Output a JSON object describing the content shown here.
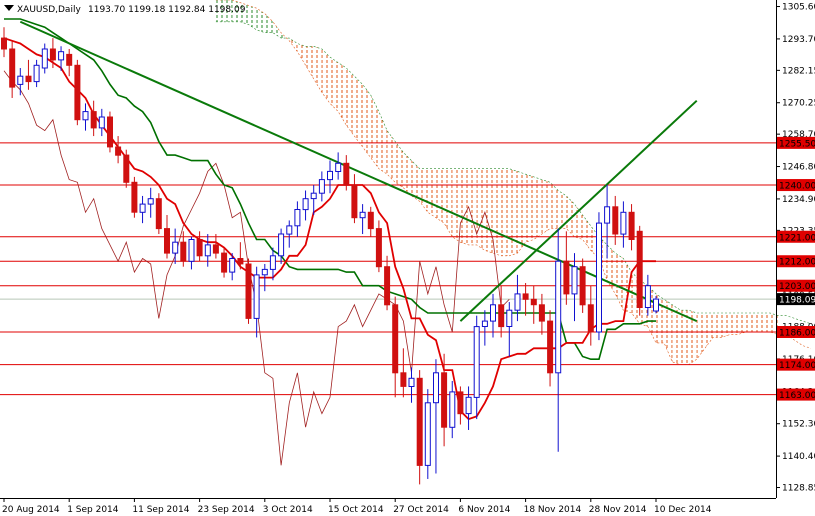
{
  "chart_data": {
    "type": "candlestick",
    "title": "XAUUSD,Daily",
    "ohlc_header": "1193.70 1199.18 1192.84 1198.09",
    "current_price": "1198.09",
    "ylim": [
      1125,
      1308
    ],
    "y_ticks": [
      {
        "value": 1305.6,
        "label": "1305.60"
      },
      {
        "value": 1293.7,
        "label": "1293.70"
      },
      {
        "value": 1282.15,
        "label": "1282.15"
      },
      {
        "value": 1270.25,
        "label": "1270.25"
      },
      {
        "value": 1258.7,
        "label": "1258.70"
      },
      {
        "value": 1246.8,
        "label": "1246.80"
      },
      {
        "value": 1234.9,
        "label": "1234.90"
      },
      {
        "value": 1223.35,
        "label": "1223.35"
      },
      {
        "value": 1211.45,
        "label": "1211.45"
      },
      {
        "value": 1199.55,
        "label": "1199.55"
      },
      {
        "value": 1188.0,
        "label": "1188.00"
      },
      {
        "value": 1176.1,
        "label": "1176.10"
      },
      {
        "value": 1164.2,
        "label": "1164.20"
      },
      {
        "value": 1152.3,
        "label": "1152.30"
      },
      {
        "value": 1140.4,
        "label": "1140.40"
      },
      {
        "value": 1128.85,
        "label": "1128.85"
      }
    ],
    "x_ticks": [
      {
        "index": 0,
        "label": "20 Aug 2014"
      },
      {
        "index": 8,
        "label": "1 Sep 2014"
      },
      {
        "index": 16,
        "label": "11 Sep 2014"
      },
      {
        "index": 24,
        "label": "23 Sep 2014"
      },
      {
        "index": 32,
        "label": "3 Oct 2014"
      },
      {
        "index": 40,
        "label": "15 Oct 2014"
      },
      {
        "index": 48,
        "label": "27 Oct 2014"
      },
      {
        "index": 56,
        "label": "6 Nov 2014"
      },
      {
        "index": 64,
        "label": "18 Nov 2014"
      },
      {
        "index": 72,
        "label": "28 Nov 2014"
      },
      {
        "index": 80,
        "label": "10 Dec 2014"
      }
    ],
    "levels": [
      {
        "value": 1255.5,
        "label": "1255.50"
      },
      {
        "value": 1240.0,
        "label": "1240.00"
      },
      {
        "value": 1221.0,
        "label": "1221.00"
      },
      {
        "value": 1212.0,
        "label": "1212.00"
      },
      {
        "value": 1203.0,
        "label": "1203.00"
      },
      {
        "value": 1186.0,
        "label": "1186.00"
      },
      {
        "value": 1174.0,
        "label": "1174.00"
      },
      {
        "value": 1163.0,
        "label": "1163.00"
      }
    ],
    "candles": [
      {
        "o": 1294,
        "h": 1298,
        "l": 1287,
        "c": 1290
      },
      {
        "o": 1290,
        "h": 1293,
        "l": 1272,
        "c": 1276
      },
      {
        "o": 1277,
        "h": 1283,
        "l": 1273,
        "c": 1280
      },
      {
        "o": 1280,
        "h": 1286,
        "l": 1275,
        "c": 1278
      },
      {
        "o": 1278,
        "h": 1286,
        "l": 1276,
        "c": 1284
      },
      {
        "o": 1283,
        "h": 1292,
        "l": 1281,
        "c": 1290
      },
      {
        "o": 1290,
        "h": 1294,
        "l": 1283,
        "c": 1286
      },
      {
        "o": 1286,
        "h": 1291,
        "l": 1282,
        "c": 1289
      },
      {
        "o": 1288,
        "h": 1290,
        "l": 1280,
        "c": 1284
      },
      {
        "o": 1284,
        "h": 1286,
        "l": 1262,
        "c": 1264
      },
      {
        "o": 1264,
        "h": 1270,
        "l": 1260,
        "c": 1267
      },
      {
        "o": 1267,
        "h": 1271,
        "l": 1258,
        "c": 1261
      },
      {
        "o": 1261,
        "h": 1268,
        "l": 1258,
        "c": 1265
      },
      {
        "o": 1265,
        "h": 1267,
        "l": 1252,
        "c": 1254
      },
      {
        "o": 1254,
        "h": 1258,
        "l": 1248,
        "c": 1251
      },
      {
        "o": 1251,
        "h": 1253,
        "l": 1239,
        "c": 1241
      },
      {
        "o": 1241,
        "h": 1243,
        "l": 1228,
        "c": 1230
      },
      {
        "o": 1230,
        "h": 1236,
        "l": 1226,
        "c": 1233
      },
      {
        "o": 1233,
        "h": 1239,
        "l": 1228,
        "c": 1235
      },
      {
        "o": 1235,
        "h": 1237,
        "l": 1222,
        "c": 1224
      },
      {
        "o": 1224,
        "h": 1229,
        "l": 1213,
        "c": 1215
      },
      {
        "o": 1215,
        "h": 1224,
        "l": 1211,
        "c": 1219
      },
      {
        "o": 1219,
        "h": 1223,
        "l": 1210,
        "c": 1212
      },
      {
        "o": 1212,
        "h": 1221,
        "l": 1209,
        "c": 1220
      },
      {
        "o": 1220,
        "h": 1223,
        "l": 1212,
        "c": 1214
      },
      {
        "o": 1214,
        "h": 1222,
        "l": 1210,
        "c": 1218
      },
      {
        "o": 1218,
        "h": 1222,
        "l": 1213,
        "c": 1215
      },
      {
        "o": 1215,
        "h": 1217,
        "l": 1206,
        "c": 1208
      },
      {
        "o": 1208,
        "h": 1215,
        "l": 1205,
        "c": 1213
      },
      {
        "o": 1213,
        "h": 1219,
        "l": 1209,
        "c": 1211
      },
      {
        "o": 1211,
        "h": 1213,
        "l": 1189,
        "c": 1191
      },
      {
        "o": 1191,
        "h": 1210,
        "l": 1184,
        "c": 1207
      },
      {
        "o": 1207,
        "h": 1211,
        "l": 1201,
        "c": 1209
      },
      {
        "o": 1209,
        "h": 1217,
        "l": 1205,
        "c": 1214
      },
      {
        "o": 1214,
        "h": 1224,
        "l": 1211,
        "c": 1222
      },
      {
        "o": 1222,
        "h": 1227,
        "l": 1217,
        "c": 1225
      },
      {
        "o": 1225,
        "h": 1234,
        "l": 1221,
        "c": 1231
      },
      {
        "o": 1231,
        "h": 1238,
        "l": 1227,
        "c": 1235
      },
      {
        "o": 1235,
        "h": 1240,
        "l": 1229,
        "c": 1237
      },
      {
        "o": 1237,
        "h": 1245,
        "l": 1234,
        "c": 1242
      },
      {
        "o": 1242,
        "h": 1249,
        "l": 1237,
        "c": 1245
      },
      {
        "o": 1245,
        "h": 1252,
        "l": 1242,
        "c": 1248
      },
      {
        "o": 1248,
        "h": 1251,
        "l": 1238,
        "c": 1240
      },
      {
        "o": 1240,
        "h": 1244,
        "l": 1226,
        "c": 1228
      },
      {
        "o": 1228,
        "h": 1233,
        "l": 1222,
        "c": 1230
      },
      {
        "o": 1230,
        "h": 1232,
        "l": 1221,
        "c": 1224
      },
      {
        "o": 1224,
        "h": 1227,
        "l": 1208,
        "c": 1210
      },
      {
        "o": 1210,
        "h": 1214,
        "l": 1194,
        "c": 1196
      },
      {
        "o": 1196,
        "h": 1199,
        "l": 1162,
        "c": 1171
      },
      {
        "o": 1171,
        "h": 1180,
        "l": 1162,
        "c": 1166
      },
      {
        "o": 1166,
        "h": 1173,
        "l": 1160,
        "c": 1169
      },
      {
        "o": 1169,
        "h": 1172,
        "l": 1130,
        "c": 1137
      },
      {
        "o": 1137,
        "h": 1165,
        "l": 1132,
        "c": 1160
      },
      {
        "o": 1160,
        "h": 1176,
        "l": 1134,
        "c": 1171
      },
      {
        "o": 1171,
        "h": 1178,
        "l": 1144,
        "c": 1151
      },
      {
        "o": 1151,
        "h": 1168,
        "l": 1147,
        "c": 1164
      },
      {
        "o": 1164,
        "h": 1166,
        "l": 1152,
        "c": 1156
      },
      {
        "o": 1156,
        "h": 1166,
        "l": 1150,
        "c": 1162
      },
      {
        "o": 1162,
        "h": 1192,
        "l": 1154,
        "c": 1188
      },
      {
        "o": 1188,
        "h": 1194,
        "l": 1181,
        "c": 1190
      },
      {
        "o": 1190,
        "h": 1200,
        "l": 1184,
        "c": 1196
      },
      {
        "o": 1196,
        "h": 1203,
        "l": 1184,
        "c": 1188
      },
      {
        "o": 1188,
        "h": 1197,
        "l": 1177,
        "c": 1194
      },
      {
        "o": 1194,
        "h": 1207,
        "l": 1190,
        "c": 1200
      },
      {
        "o": 1200,
        "h": 1204,
        "l": 1192,
        "c": 1198
      },
      {
        "o": 1198,
        "h": 1203,
        "l": 1189,
        "c": 1196
      },
      {
        "o": 1196,
        "h": 1200,
        "l": 1185,
        "c": 1190
      },
      {
        "o": 1190,
        "h": 1194,
        "l": 1166,
        "c": 1171
      },
      {
        "o": 1171,
        "h": 1224,
        "l": 1142,
        "c": 1212
      },
      {
        "o": 1212,
        "h": 1223,
        "l": 1196,
        "c": 1200
      },
      {
        "o": 1200,
        "h": 1215,
        "l": 1190,
        "c": 1210
      },
      {
        "o": 1210,
        "h": 1213,
        "l": 1193,
        "c": 1196
      },
      {
        "o": 1196,
        "h": 1203,
        "l": 1181,
        "c": 1186
      },
      {
        "o": 1186,
        "h": 1230,
        "l": 1183,
        "c": 1226
      },
      {
        "o": 1226,
        "h": 1240,
        "l": 1213,
        "c": 1232
      },
      {
        "o": 1232,
        "h": 1236,
        "l": 1218,
        "c": 1222
      },
      {
        "o": 1222,
        "h": 1234,
        "l": 1217,
        "c": 1230
      },
      {
        "o": 1230,
        "h": 1233,
        "l": 1216,
        "c": 1220
      },
      {
        "o": 1223,
        "h": 1225,
        "l": 1192,
        "c": 1195
      },
      {
        "o": 1195,
        "h": 1207,
        "l": 1192,
        "c": 1203
      },
      {
        "o": 1193.7,
        "h": 1199.18,
        "l": 1192.84,
        "c": 1198.09
      }
    ],
    "kijun_red": [
      1294,
      1293,
      1292,
      1290,
      1288,
      1287,
      1285,
      1283,
      1278,
      1275,
      1272,
      1266,
      1262,
      1258,
      1254,
      1250,
      1246,
      1245,
      1243,
      1240,
      1235,
      1233,
      1226,
      1222,
      1220,
      1219,
      1219,
      1217,
      1214,
      1210,
      1208,
      1206,
      1206,
      1206,
      1209,
      1214,
      1214,
      1218,
      1230,
      1232,
      1235,
      1240,
      1240,
      1240,
      1240,
      1237,
      1230,
      1226,
      1210,
      1202,
      1191,
      1191,
      1185,
      1183,
      1172,
      1172,
      1157,
      1154,
      1155,
      1160,
      1166,
      1176,
      1177,
      1178,
      1178,
      1180,
      1180,
      1180,
      1180,
      1182,
      1182,
      1182,
      1187,
      1189,
      1189,
      1190,
      1190,
      1208,
      1212,
      1212,
      1212
    ],
    "tenkan_green": [
      1301,
      1301,
      1301,
      1300,
      1299,
      1298,
      1296,
      1294,
      1292,
      1290,
      1288,
      1286,
      1282,
      1277,
      1273,
      1272,
      1269,
      1267,
      1263,
      1256,
      1251,
      1251,
      1250,
      1249,
      1249,
      1249,
      1244,
      1240,
      1239,
      1233,
      1226,
      1220,
      1220,
      1216,
      1214,
      1210,
      1209,
      1209,
      1209,
      1209,
      1209,
      1209,
      1208,
      1208,
      1203,
      1203,
      1203,
      1201,
      1200,
      1199,
      1198,
      1195,
      1193,
      1193,
      1193,
      1193,
      1193,
      1193,
      1193,
      1193,
      1193,
      1193,
      1193,
      1193,
      1193,
      1193,
      1193,
      1193,
      1193,
      1182,
      1182,
      1177,
      1176,
      1176,
      1187,
      1187,
      1189,
      1189,
      1189,
      1190,
      1190
    ],
    "chikou": [
      1282,
      1278,
      1275,
      1270,
      1262,
      1260,
      1264,
      1251,
      1242,
      1241,
      1230,
      1235,
      1224,
      1218,
      1212,
      1219,
      1208,
      1213,
      1211,
      1191,
      1207,
      1214,
      1225,
      1231,
      1237,
      1245,
      1248,
      1240,
      1228,
      1230,
      1210,
      1196,
      1171,
      1169,
      1137,
      1160,
      1171,
      1151,
      1164,
      1156,
      1162,
      1188,
      1190,
      1196,
      1188,
      1194,
      1200,
      1198,
      1196,
      1190,
      1171,
      1212,
      1200,
      1210,
      1196,
      1186,
      1226,
      1232,
      1222,
      1230,
      1220,
      1195,
      1198
    ],
    "cloud_a": [
      1308,
      1308,
      1308,
      1307,
      1306,
      1305,
      1303,
      1300,
      1296,
      1293,
      1289,
      1284,
      1279,
      1274,
      1270,
      1267,
      1262,
      1258,
      1254,
      1250,
      1246,
      1244,
      1241,
      1239,
      1236,
      1234,
      1230,
      1228,
      1226,
      1221,
      1219,
      1218,
      1218,
      1216,
      1215,
      1214,
      1214,
      1215,
      1219,
      1220,
      1222,
      1224,
      1224,
      1224,
      1221,
      1220,
      1216,
      1213,
      1205,
      1200,
      1194,
      1193,
      1189,
      1188,
      1182,
      1182,
      1175,
      1174,
      1174,
      1176,
      1180,
      1184,
      1184,
      1185,
      1185,
      1186,
      1186,
      1186,
      1186,
      1185,
      1185,
      1183,
      1181,
      1180
    ],
    "cloud_b": [
      1300,
      1300,
      1300,
      1300,
      1299,
      1297,
      1296,
      1296,
      1294,
      1294,
      1292,
      1291,
      1291,
      1290,
      1287,
      1285,
      1283,
      1280,
      1277,
      1273,
      1267,
      1260,
      1256,
      1252,
      1249,
      1246,
      1246,
      1246,
      1246,
      1246,
      1246,
      1246,
      1246,
      1246,
      1246,
      1246,
      1246,
      1245,
      1244,
      1243,
      1242,
      1241,
      1238,
      1236,
      1233,
      1229,
      1225,
      1221,
      1218,
      1215,
      1213,
      1208,
      1205,
      1203,
      1200,
      1198,
      1196,
      1194,
      1194,
      1193,
      1193,
      1193,
      1193,
      1193,
      1193,
      1193,
      1193,
      1193,
      1193,
      1192,
      1192,
      1191,
      1190,
      1189
    ],
    "trendlines": [
      {
        "from": {
          "index": 2,
          "value": 1300
        },
        "to": {
          "index": 85,
          "value": 1190
        }
      },
      {
        "from": {
          "index": 56,
          "value": 1190
        },
        "to": {
          "index": 85,
          "value": 1271
        }
      }
    ],
    "colors": {
      "bull": "#1010d0",
      "bear": "#d01010",
      "kijun": "#e00000",
      "tenkan": "#007000",
      "chikou": "#a02020",
      "cloud_up": "#2a8a2a",
      "cloud_down": "#e05a1a",
      "level": "#e00000",
      "trend": "#0a7a0a",
      "current_line": "#b8c8b8",
      "axis": "#000000"
    }
  }
}
